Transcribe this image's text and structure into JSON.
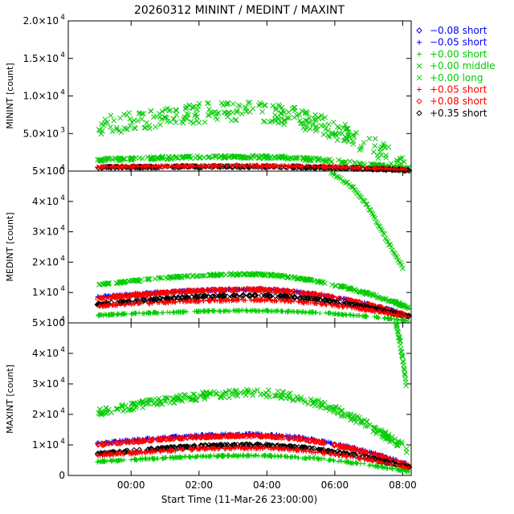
{
  "chart_data": {
    "type": "scatter",
    "title": "20260312 MININT / MEDINT / MAXINT",
    "xlabel": "Start Time (11-Mar-26 23:00:00)",
    "xlim": [
      -0.85,
      9.25
    ],
    "x_ticks": [
      {
        "v": 1,
        "label": "00:00"
      },
      {
        "v": 3,
        "label": "02:00"
      },
      {
        "v": 5,
        "label": "04:00"
      },
      {
        "v": 7,
        "label": "06:00"
      },
      {
        "v": 9,
        "label": "08:00"
      }
    ],
    "panels": [
      {
        "ylabel": "MININT [count]",
        "ylim": [
          0,
          20000
        ],
        "y_ticks": [
          {
            "v": 0,
            "label": "0"
          },
          {
            "v": 5000,
            "label": "5.0×10",
            "exp": "3"
          },
          {
            "v": 10000,
            "label": "1.0×10",
            "exp": "4"
          },
          {
            "v": 15000,
            "label": "1.5×10",
            "exp": "4"
          },
          {
            "v": 20000,
            "label": "2.0×10",
            "exp": "4"
          }
        ],
        "series": [
          {
            "legend_index": 3,
            "name": "middle",
            "peak": 8000,
            "start": 5800,
            "end": 400,
            "peak_x": 4.4,
            "spread": 1300
          },
          {
            "legend_index": 4,
            "name": "long",
            "peak": 1900,
            "start": 1500,
            "end": 200,
            "peak_x": 4.4,
            "spread": 200
          },
          {
            "legend_index": 7,
            "name": "black",
            "peak": 600,
            "start": 500,
            "end": 100,
            "peak_x": 4.5,
            "spread": 100
          },
          {
            "legend_index": 5,
            "name": "red",
            "peak": 700,
            "start": 550,
            "end": 150,
            "peak_x": 4.5,
            "spread": 100
          }
        ]
      },
      {
        "ylabel": "MEDINT [count]",
        "ylim": [
          0,
          50000
        ],
        "y_ticks": [
          {
            "v": 0,
            "label": "0"
          },
          {
            "v": 10000,
            "label": "1×10",
            "exp": "4"
          },
          {
            "v": 20000,
            "label": "2×10",
            "exp": "4"
          },
          {
            "v": 30000,
            "label": "3×10",
            "exp": "4"
          },
          {
            "v": 40000,
            "label": "4×10",
            "exp": "4"
          },
          {
            "v": 50000,
            "label": "5×10",
            "exp": "4"
          }
        ],
        "series": [
          {
            "legend_index": 3,
            "name": "middle",
            "peak": 16000,
            "start": 12500,
            "end": 5000,
            "peak_x": 4.5,
            "spread": 300
          },
          {
            "legend_index": 1,
            "name": "blue",
            "peak": 11000,
            "start": 8500,
            "end": 2500,
            "peak_x": 4.6,
            "spread": 300
          },
          {
            "legend_index": 6,
            "name": "red-diamond",
            "peak": 11000,
            "start": 8000,
            "end": 2200,
            "peak_x": 4.6,
            "spread": 300
          },
          {
            "legend_index": 7,
            "name": "black",
            "peak": 9000,
            "start": 6000,
            "end": 2000,
            "peak_x": 4.6,
            "spread": 300
          },
          {
            "legend_index": 5,
            "name": "red",
            "peak": 7500,
            "start": 5500,
            "end": 1800,
            "peak_x": 4.6,
            "spread": 250
          },
          {
            "legend_index": 2,
            "name": "green-plus",
            "peak": 4000,
            "start": 2500,
            "end": 700,
            "peak_x": 4.6,
            "spread": 200
          }
        ],
        "rising_series": {
          "legend_index": 4,
          "from": [
            -0.1,
            1000
          ],
          "points": [
            [
              6.8,
              50000
            ],
            [
              7.5,
              45000
            ],
            [
              8.0,
              38000
            ],
            [
              8.5,
              28000
            ],
            [
              9.0,
              18000
            ]
          ]
        }
      },
      {
        "ylabel": "MAXINT [count]",
        "ylim": [
          0,
          50000
        ],
        "y_ticks": [
          {
            "v": 0,
            "label": "0"
          },
          {
            "v": 10000,
            "label": "1×10",
            "exp": "4"
          },
          {
            "v": 20000,
            "label": "2×10",
            "exp": "4"
          },
          {
            "v": 30000,
            "label": "3×10",
            "exp": "4"
          },
          {
            "v": 40000,
            "label": "4×10",
            "exp": "4"
          },
          {
            "v": 50000,
            "label": "5×10",
            "exp": "4"
          }
        ],
        "series": [
          {
            "legend_index": 3,
            "name": "middle",
            "peak": 27000,
            "start": 20500,
            "end": 8000,
            "peak_x": 4.8,
            "spread": 1200
          },
          {
            "legend_index": 1,
            "name": "blue",
            "peak": 13500,
            "start": 10500,
            "end": 3500,
            "peak_x": 4.6,
            "spread": 300
          },
          {
            "legend_index": 6,
            "name": "red-diamond",
            "peak": 13000,
            "start": 10000,
            "end": 3200,
            "peak_x": 4.6,
            "spread": 300
          },
          {
            "legend_index": 7,
            "name": "black",
            "peak": 10000,
            "start": 7000,
            "end": 2500,
            "peak_x": 4.6,
            "spread": 300
          },
          {
            "legend_index": 5,
            "name": "red",
            "peak": 9000,
            "start": 6500,
            "end": 2200,
            "peak_x": 4.6,
            "spread": 300
          },
          {
            "legend_index": 2,
            "name": "green-plus",
            "peak": 6500,
            "start": 4500,
            "end": 1200,
            "peak_x": 4.6,
            "spread": 250
          }
        ],
        "spike_series": {
          "legend_index": 4,
          "points": [
            [
              8.8,
              50000
            ],
            [
              8.9,
              45000
            ],
            [
              9.0,
              38000
            ],
            [
              9.1,
              30000
            ]
          ]
        }
      }
    ],
    "legend": [
      {
        "marker": "diamond",
        "color": "#0000ff",
        "text": "−0.08 short"
      },
      {
        "marker": "plus",
        "color": "#0000ff",
        "text": "−0.05 short"
      },
      {
        "marker": "plus",
        "color": "#00cc00",
        "text": "+0.00 short"
      },
      {
        "marker": "cross",
        "color": "#00cc00",
        "text": "+0.00 middle"
      },
      {
        "marker": "cross",
        "color": "#00cc00",
        "text": "+0.00 long"
      },
      {
        "marker": "plus",
        "color": "#ff0000",
        "text": "+0.05 short"
      },
      {
        "marker": "diamond",
        "color": "#ff0000",
        "text": "+0.08 short"
      },
      {
        "marker": "diamond",
        "color": "#000000",
        "text": "+0.35 short"
      }
    ]
  }
}
